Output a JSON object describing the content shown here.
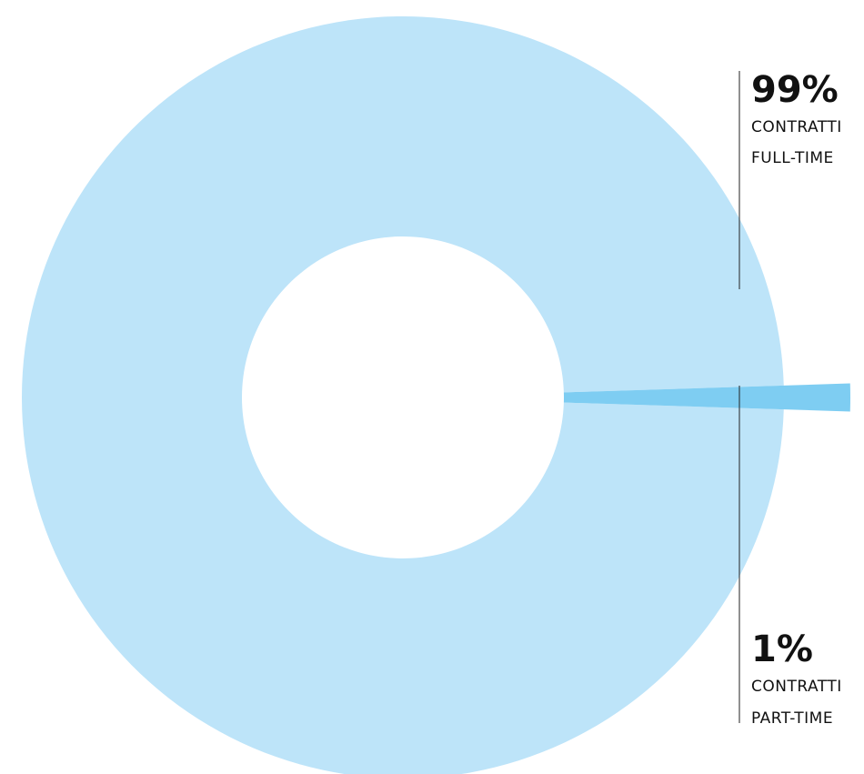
{
  "chart_data": {
    "type": "pie",
    "donut": true,
    "slices": [
      {
        "value": 99,
        "label_pct": "99%",
        "label_lines": [
          "CONTRATTI",
          "FULL-TIME"
        ],
        "color": "#bde4f9"
      },
      {
        "value": 1,
        "label_pct": "1%",
        "label_lines": [
          "CONTRATTI",
          "PART-TIME"
        ],
        "color": "#7ecdf2"
      }
    ]
  }
}
